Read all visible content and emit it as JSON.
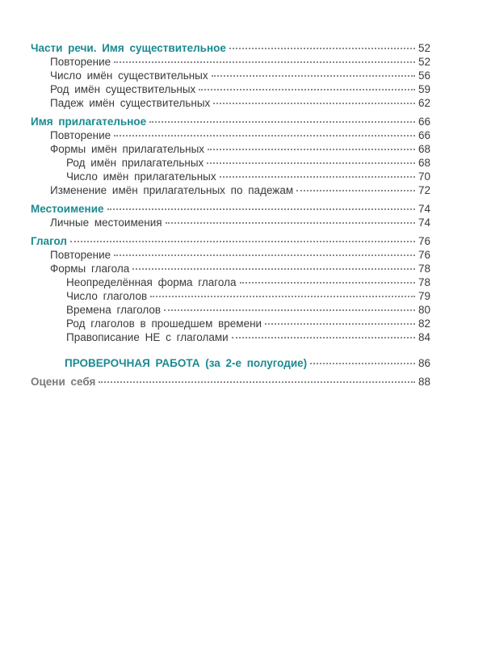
{
  "toc": [
    {
      "title": "Части речи. Имя существительное",
      "page": "52",
      "level": "h"
    },
    {
      "title": "Повторение",
      "page": "52",
      "level": "l1"
    },
    {
      "title": "Число имён существительных",
      "page": "56",
      "level": "l1"
    },
    {
      "title": "Род имён существительных",
      "page": "59",
      "level": "l1"
    },
    {
      "title": "Падеж имён существительных",
      "page": "62",
      "level": "l1"
    },
    {
      "title": "Имя прилагательное",
      "page": "66",
      "level": "h",
      "gap": "gap"
    },
    {
      "title": "Повторение",
      "page": "66",
      "level": "l1"
    },
    {
      "title": "Формы имён прилагательных",
      "page": "68",
      "level": "l1"
    },
    {
      "title": "Род имён прилагательных",
      "page": "68",
      "level": "l2"
    },
    {
      "title": "Число имён прилагательных",
      "page": "70",
      "level": "l2"
    },
    {
      "title": "Изменение имён прилагательных по падежам",
      "page": "72",
      "level": "l1"
    },
    {
      "title": "Местоимение",
      "page": "74",
      "level": "h",
      "gap": "gap"
    },
    {
      "title": "Личные местоимения",
      "page": "74",
      "level": "l1"
    },
    {
      "title": "Глагол",
      "page": "76",
      "level": "h",
      "gap": "gap"
    },
    {
      "title": "Повторение",
      "page": "76",
      "level": "l1"
    },
    {
      "title": "Формы глагола",
      "page": "78",
      "level": "l1"
    },
    {
      "title": "Неопределённая форма глагола",
      "page": "78",
      "level": "l2"
    },
    {
      "title": "Число глаголов",
      "page": "79",
      "level": "l2"
    },
    {
      "title": "Времена глаголов",
      "page": "80",
      "level": "l2"
    },
    {
      "title": "Род глаголов в прошедшем времени",
      "page": "82",
      "level": "l2"
    },
    {
      "title": "Правописание НЕ с глаголами",
      "page": "84",
      "level": "l2"
    },
    {
      "title": "ПРОВЕРОЧНАЯ РАБОТА (за 2-е полугодие)",
      "page": "86",
      "level": "h lp",
      "gap": "biggap"
    },
    {
      "title": "Оцени себя",
      "page": "88",
      "level": "grey",
      "gap": "gap"
    }
  ],
  "colors": {
    "heading": "#1b8a90",
    "text": "#3a3a3a",
    "muted": "#7a7a7a"
  }
}
